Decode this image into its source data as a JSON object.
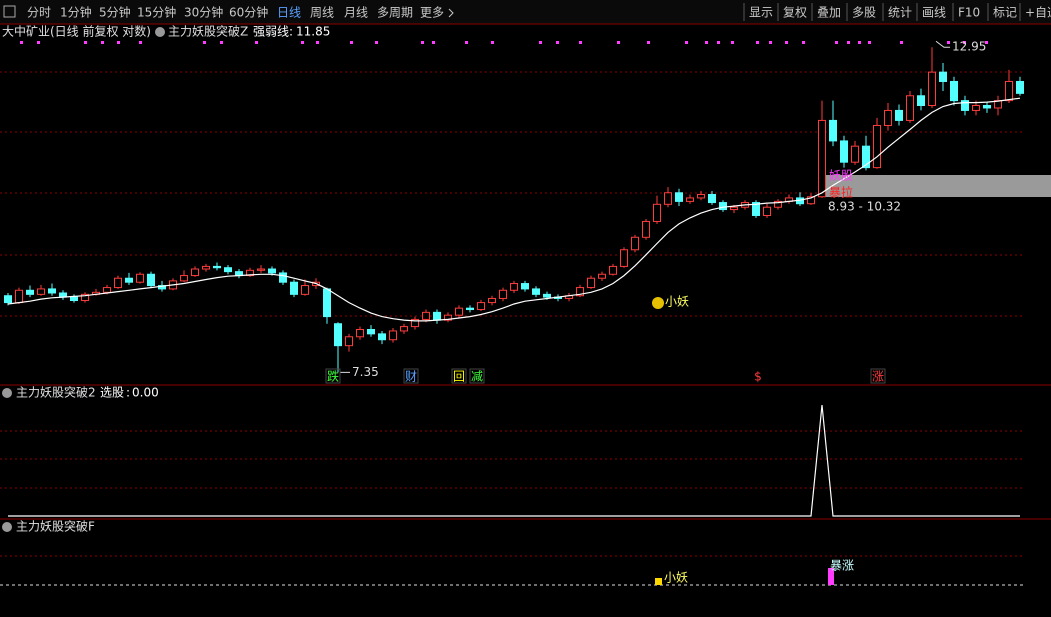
{
  "toolbar": {
    "periods": [
      "分时",
      "1分钟",
      "5分钟",
      "15分钟",
      "30分钟",
      "60分钟",
      "日线",
      "周线",
      "月线",
      "多周期",
      "更多"
    ],
    "tools": [
      "显示",
      "复权",
      "叠加",
      "多股",
      "统计",
      "画线",
      "F10",
      "标记",
      "+自选"
    ]
  },
  "chart_data": [
    {
      "type": "candlestick",
      "title": "大中矿业(日线 前复权 对数)",
      "indicator": "主力妖股突破Z",
      "log_scale": true,
      "ylim": [
        7.19,
        13.16
      ],
      "up_color": "#ff3c3c",
      "down_color": "#54ffff",
      "open": [
        8.4,
        8.3,
        8.48,
        8.42,
        8.5,
        8.44,
        8.38,
        8.33,
        8.42,
        8.45,
        8.52,
        8.66,
        8.6,
        8.72,
        8.55,
        8.5,
        8.62,
        8.7,
        8.8,
        8.84,
        8.82,
        8.76,
        8.7,
        8.78,
        8.8,
        8.74,
        8.6,
        8.42,
        8.55,
        8.5,
        8.0,
        7.7,
        7.82,
        7.92,
        7.86,
        7.78,
        7.9,
        7.96,
        8.06,
        8.16,
        8.05,
        8.12,
        8.22,
        8.2,
        8.3,
        8.36,
        8.48,
        8.58,
        8.5,
        8.42,
        8.38,
        8.36,
        8.4,
        8.52,
        8.66,
        8.72,
        8.84,
        9.1,
        9.3,
        9.56,
        9.85,
        10.05,
        9.9,
        9.96,
        10.02,
        9.88,
        9.76,
        9.8,
        9.88,
        9.66,
        9.8,
        9.9,
        9.96,
        9.86,
        9.98,
        11.4,
        11.0,
        10.6,
        10.9,
        10.5,
        11.3,
        11.6,
        11.4,
        11.9,
        11.7,
        12.4,
        12.2,
        11.8,
        11.6,
        11.7,
        11.65,
        11.8,
        12.2
      ],
      "high": [
        8.44,
        8.52,
        8.55,
        8.56,
        8.58,
        8.48,
        8.42,
        8.45,
        8.5,
        8.56,
        8.7,
        8.74,
        8.75,
        8.76,
        8.62,
        8.66,
        8.78,
        8.84,
        8.88,
        8.9,
        8.86,
        8.8,
        8.82,
        8.86,
        8.84,
        8.78,
        8.64,
        8.64,
        8.66,
        8.52,
        8.02,
        7.86,
        7.96,
        7.98,
        7.9,
        7.94,
        8.0,
        8.1,
        8.2,
        8.2,
        8.16,
        8.26,
        8.26,
        8.34,
        8.4,
        8.52,
        8.62,
        8.62,
        8.54,
        8.46,
        8.42,
        8.44,
        8.56,
        8.7,
        8.76,
        8.88,
        9.14,
        9.34,
        9.6,
        10.0,
        10.15,
        10.12,
        10.02,
        10.08,
        10.08,
        9.92,
        9.84,
        9.92,
        9.92,
        9.86,
        9.94,
        10.02,
        10.06,
        10.04,
        11.8,
        11.8,
        11.1,
        11.0,
        11.1,
        11.45,
        11.75,
        11.72,
        12.0,
        12.05,
        12.95,
        12.6,
        12.3,
        11.9,
        11.8,
        11.78,
        11.9,
        12.45,
        12.3
      ],
      "low": [
        8.26,
        8.28,
        8.38,
        8.4,
        8.4,
        8.34,
        8.3,
        8.3,
        8.4,
        8.42,
        8.5,
        8.56,
        8.58,
        8.52,
        8.46,
        8.48,
        8.6,
        8.68,
        8.76,
        8.78,
        8.72,
        8.66,
        8.68,
        8.74,
        8.7,
        8.56,
        8.38,
        8.4,
        8.5,
        8.0,
        7.35,
        7.62,
        7.78,
        7.82,
        7.72,
        7.74,
        7.86,
        7.92,
        8.02,
        8.0,
        8.02,
        8.08,
        8.16,
        8.18,
        8.26,
        8.32,
        8.44,
        8.46,
        8.38,
        8.34,
        8.32,
        8.32,
        8.38,
        8.5,
        8.62,
        8.7,
        8.82,
        9.06,
        9.26,
        9.52,
        9.8,
        9.82,
        9.86,
        9.92,
        9.84,
        9.72,
        9.7,
        9.76,
        9.62,
        9.62,
        9.76,
        9.86,
        9.82,
        9.84,
        9.96,
        10.9,
        10.5,
        10.55,
        10.45,
        10.48,
        11.2,
        11.3,
        11.35,
        11.6,
        11.65,
        12.0,
        11.7,
        11.5,
        11.5,
        11.55,
        11.5,
        11.75,
        11.9
      ],
      "close": [
        8.3,
        8.48,
        8.42,
        8.5,
        8.44,
        8.38,
        8.33,
        8.42,
        8.45,
        8.52,
        8.66,
        8.6,
        8.72,
        8.55,
        8.5,
        8.62,
        8.7,
        8.8,
        8.84,
        8.82,
        8.76,
        8.7,
        8.78,
        8.8,
        8.74,
        8.6,
        8.42,
        8.55,
        8.6,
        8.1,
        7.7,
        7.82,
        7.92,
        7.86,
        7.78,
        7.9,
        7.96,
        8.06,
        8.16,
        8.05,
        8.12,
        8.22,
        8.2,
        8.3,
        8.36,
        8.48,
        8.58,
        8.5,
        8.42,
        8.38,
        8.36,
        8.4,
        8.52,
        8.66,
        8.72,
        8.84,
        9.1,
        9.3,
        9.56,
        9.85,
        10.05,
        9.9,
        9.96,
        10.02,
        9.88,
        9.76,
        9.8,
        9.88,
        9.66,
        9.8,
        9.9,
        9.96,
        9.86,
        9.98,
        11.4,
        11.0,
        10.6,
        10.9,
        10.5,
        11.3,
        11.6,
        11.4,
        11.9,
        11.7,
        12.4,
        12.2,
        11.8,
        11.6,
        11.7,
        11.65,
        11.8,
        12.2,
        11.95
      ],
      "line": {
        "name": "强弱线",
        "color": "#ffffff",
        "values": [
          8.28,
          8.3,
          8.32,
          8.35,
          8.37,
          8.38,
          8.39,
          8.4,
          8.42,
          8.44,
          8.46,
          8.48,
          8.5,
          8.52,
          8.54,
          8.56,
          8.58,
          8.61,
          8.64,
          8.67,
          8.69,
          8.7,
          8.71,
          8.72,
          8.72,
          8.7,
          8.66,
          8.62,
          8.58,
          8.5,
          8.4,
          8.3,
          8.22,
          8.15,
          8.1,
          8.07,
          8.05,
          8.04,
          8.04,
          8.05,
          8.06,
          8.08,
          8.1,
          8.13,
          8.17,
          8.22,
          8.28,
          8.32,
          8.34,
          8.36,
          8.38,
          8.4,
          8.42,
          8.45,
          8.5,
          8.58,
          8.7,
          8.85,
          9.02,
          9.2,
          9.38,
          9.52,
          9.62,
          9.7,
          9.76,
          9.8,
          9.82,
          9.84,
          9.85,
          9.87,
          9.88,
          9.9,
          9.92,
          9.96,
          10.05,
          10.18,
          10.3,
          10.42,
          10.55,
          10.7,
          10.88,
          11.05,
          11.22,
          11.4,
          11.56,
          11.68,
          11.74,
          11.76,
          11.76,
          11.77,
          11.79,
          11.82,
          11.85
        ]
      },
      "signals": [
        "跌",
        "财",
        "回",
        "减",
        "$",
        "涨"
      ],
      "tags": [
        "小妖",
        "妖股",
        "暴拉"
      ],
      "range_label": "8.93 - 10.32"
    },
    {
      "type": "line",
      "title": "主力妖股突破2",
      "readout": "0.00",
      "ylim": [
        0,
        1
      ],
      "series": [
        {
          "name": "选股",
          "color": "#ffffff",
          "values": [
            0,
            0,
            0,
            0,
            0,
            0,
            0,
            0,
            0,
            0,
            0,
            0,
            0,
            0,
            0,
            0,
            0,
            0,
            0,
            0,
            0,
            0,
            0,
            0,
            0,
            0,
            0,
            0,
            0,
            0,
            0,
            0,
            0,
            0,
            0,
            0,
            0,
            0,
            0,
            0,
            0,
            0,
            0,
            0,
            0,
            0,
            0,
            0,
            0,
            0,
            0,
            0,
            0,
            0,
            0,
            0,
            0,
            0,
            0,
            0,
            0,
            0,
            0,
            0,
            0,
            0,
            0,
            0,
            0,
            0,
            0,
            0,
            0,
            0,
            1,
            0,
            0,
            0,
            0,
            0,
            0,
            0,
            0,
            0,
            0,
            0,
            0,
            0,
            0,
            0,
            0,
            0,
            0
          ]
        }
      ]
    },
    {
      "type": "signal",
      "title": "主力妖股突破F",
      "labels": [
        "小妖",
        "暴涨"
      ]
    }
  ]
}
